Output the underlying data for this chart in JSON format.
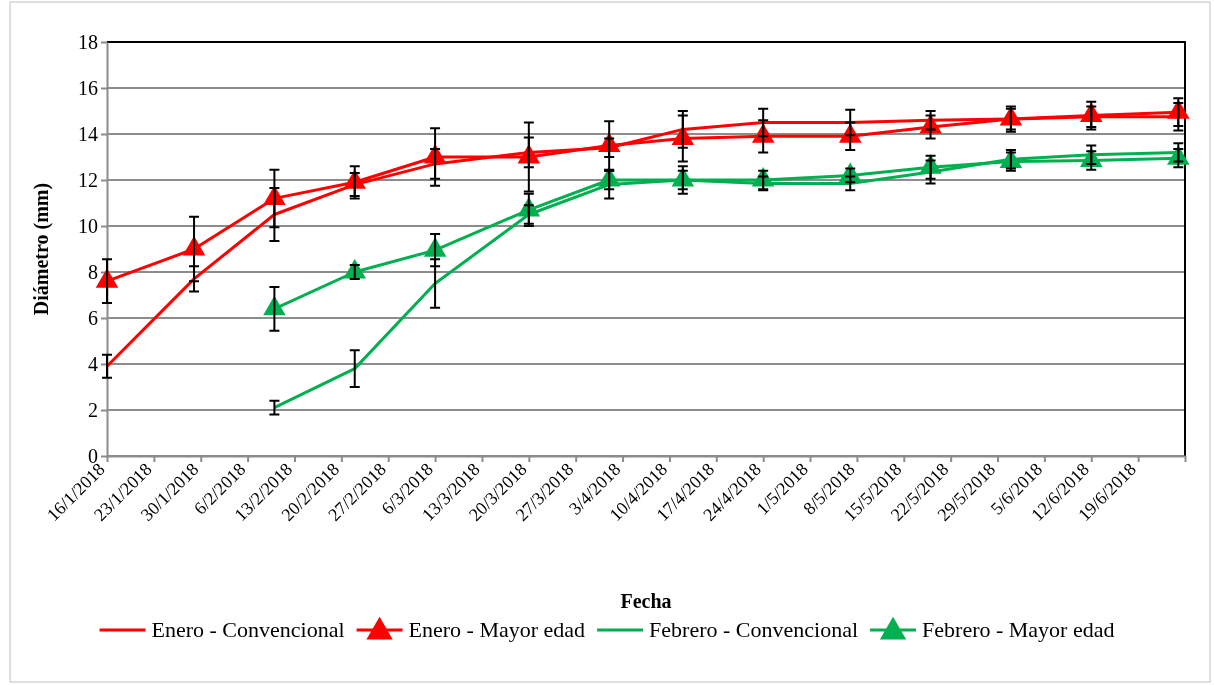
{
  "chart_data": {
    "type": "line",
    "xlabel": "Fecha",
    "ylabel": "Diámetro (mm)",
    "x": [
      "2018-01-16",
      "2018-01-29",
      "2018-02-10",
      "2018-02-22",
      "2018-03-06",
      "2018-03-20",
      "2018-04-01",
      "2018-04-12",
      "2018-04-24",
      "2018-05-07",
      "2018-05-19",
      "2018-05-31",
      "2018-06-12",
      "2018-06-25"
    ],
    "xlim": [
      "2018-01-16",
      "2018-06-26"
    ],
    "xticks": [
      {
        "value": "2018-01-16",
        "label": "16/1/2018"
      },
      {
        "value": "2018-01-23",
        "label": "23/1/2018"
      },
      {
        "value": "2018-01-30",
        "label": "30/1/2018"
      },
      {
        "value": "2018-02-06",
        "label": "6/2/2018"
      },
      {
        "value": "2018-02-13",
        "label": "13/2/2018"
      },
      {
        "value": "2018-02-20",
        "label": "20/2/2018"
      },
      {
        "value": "2018-02-27",
        "label": "27/2/2018"
      },
      {
        "value": "2018-03-06",
        "label": "6/3/2018"
      },
      {
        "value": "2018-03-13",
        "label": "13/3/2018"
      },
      {
        "value": "2018-03-20",
        "label": "20/3/2018"
      },
      {
        "value": "2018-03-27",
        "label": "27/3/2018"
      },
      {
        "value": "2018-04-03",
        "label": "3/4/2018"
      },
      {
        "value": "2018-04-10",
        "label": "10/4/2018"
      },
      {
        "value": "2018-04-17",
        "label": "17/4/2018"
      },
      {
        "value": "2018-04-24",
        "label": "24/4/2018"
      },
      {
        "value": "2018-05-01",
        "label": "1/5/2018"
      },
      {
        "value": "2018-05-08",
        "label": "8/5/2018"
      },
      {
        "value": "2018-05-15",
        "label": "15/5/2018"
      },
      {
        "value": "2018-05-22",
        "label": "22/5/2018"
      },
      {
        "value": "2018-05-29",
        "label": "29/5/2018"
      },
      {
        "value": "2018-06-05",
        "label": "5/6/2018"
      },
      {
        "value": "2018-06-12",
        "label": "12/6/2018"
      },
      {
        "value": "2018-06-19",
        "label": "19/6/2018"
      },
      {
        "value": "2018-06-26",
        "label": null
      }
    ],
    "ylim": [
      0,
      18
    ],
    "yticks": [
      0,
      2,
      4,
      6,
      8,
      10,
      12,
      14,
      16,
      18
    ],
    "grid": "y",
    "legend": "bottom",
    "line_style": "solid",
    "series": [
      {
        "name": "Enero - Convencional",
        "color": "#ff0000",
        "marker": "none",
        "values": [
          3.9,
          7.7,
          10.5,
          11.8,
          12.7,
          13.2,
          13.4,
          14.2,
          14.5,
          14.5,
          14.6,
          14.65,
          14.75,
          14.75
        ],
        "errors": [
          0.5,
          0.55,
          1.15,
          0.5,
          0.65,
          0.65,
          0.4,
          0.8,
          0.6,
          0.55,
          0.4,
          0.45,
          0.45,
          0.6
        ]
      },
      {
        "name": "Enero - Mayor edad",
        "color": "#ff0000",
        "marker": "triangle",
        "values": [
          7.6,
          9.0,
          11.2,
          11.9,
          13.0,
          13.0,
          13.5,
          13.8,
          13.9,
          13.9,
          14.3,
          14.65,
          14.8,
          14.95
        ],
        "errors": [
          0.95,
          1.4,
          1.25,
          0.7,
          1.25,
          1.5,
          1.05,
          1.0,
          0.7,
          0.6,
          0.5,
          0.55,
          0.6,
          0.6
        ]
      },
      {
        "name": "Febrero - Convencional",
        "color": "#00b050",
        "marker": "none",
        "values": [
          null,
          null,
          2.1,
          3.8,
          7.5,
          10.5,
          11.8,
          12.0,
          11.85,
          11.85,
          12.35,
          12.9,
          13.1,
          13.2
        ],
        "errors": [
          null,
          null,
          0.3,
          0.8,
          1.05,
          0.4,
          0.6,
          0.4,
          0.3,
          0.3,
          0.5,
          0.4,
          0.4,
          0.4
        ]
      },
      {
        "name": "Febrero - Mayor edad",
        "color": "#00b050",
        "marker": "triangle",
        "values": [
          null,
          null,
          6.4,
          8.0,
          8.95,
          10.7,
          12.0,
          12.0,
          12.0,
          12.2,
          12.55,
          12.8,
          12.85,
          12.95
        ],
        "errors": [
          null,
          null,
          0.95,
          0.3,
          0.7,
          0.7,
          0.4,
          0.6,
          0.4,
          0.3,
          0.5,
          0.4,
          0.4,
          0.4
        ]
      }
    ]
  }
}
